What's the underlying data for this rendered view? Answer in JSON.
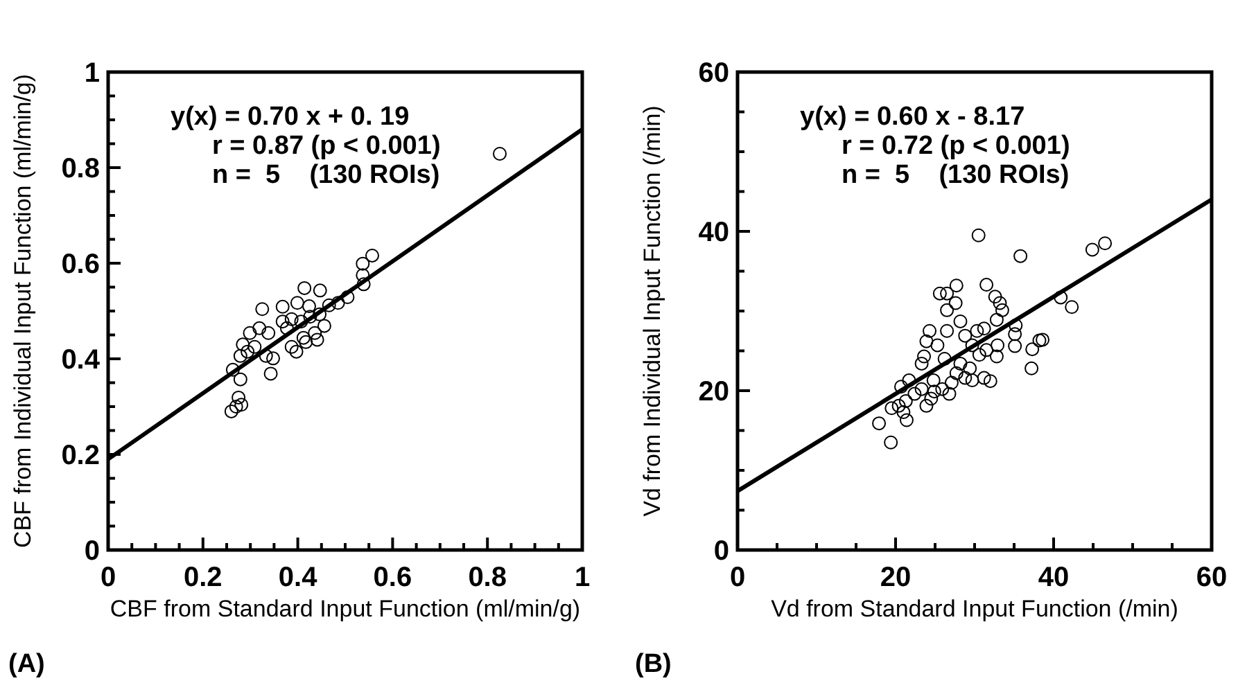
{
  "chart_data": [
    {
      "type": "scatter",
      "xlabel": "CBF from Standard Input Function (ml/min/g)",
      "ylabel": "CBF from Individual Input Function (ml/min/g)",
      "xlim": [
        0,
        1
      ],
      "ylim": [
        0,
        1
      ],
      "xticks": [
        0,
        {
          "value": 0.05,
          "label": null
        },
        {
          "value": 0.1,
          "label": null
        },
        {
          "value": 0.15,
          "label": null
        },
        0.2,
        {
          "value": 0.25,
          "label": null
        },
        {
          "value": 0.3,
          "label": null
        },
        {
          "value": 0.35,
          "label": null
        },
        0.4,
        {
          "value": 0.45,
          "label": null
        },
        {
          "value": 0.5,
          "label": null
        },
        {
          "value": 0.55,
          "label": null
        },
        0.6,
        {
          "value": 0.65,
          "label": null
        },
        {
          "value": 0.7,
          "label": null
        },
        {
          "value": 0.75,
          "label": null
        },
        0.8,
        {
          "value": 0.85,
          "label": null
        },
        {
          "value": 0.9,
          "label": null
        },
        {
          "value": 0.95,
          "label": null
        },
        1
      ],
      "yticks": [
        0,
        {
          "value": 0.05,
          "label": null
        },
        {
          "value": 0.1,
          "label": null
        },
        {
          "value": 0.15,
          "label": null
        },
        0.2,
        {
          "value": 0.25,
          "label": null
        },
        {
          "value": 0.3,
          "label": null
        },
        {
          "value": 0.35,
          "label": null
        },
        0.4,
        {
          "value": 0.45,
          "label": null
        },
        {
          "value": 0.5,
          "label": null
        },
        {
          "value": 0.55,
          "label": null
        },
        0.6,
        {
          "value": 0.65,
          "label": null
        },
        {
          "value": 0.7,
          "label": null
        },
        {
          "value": 0.75,
          "label": null
        },
        0.8,
        {
          "value": 0.85,
          "label": null
        },
        {
          "value": 0.9,
          "label": null
        },
        {
          "value": 0.95,
          "label": null
        },
        1
      ],
      "grid": false,
      "annotations": [
        "y(x) = 0.70 x + 0. 19",
        "r = 0.87 (p < 0.001)",
        "n =  5    (130 ROIs)",
        "(A)"
      ],
      "series": [
        {
          "marker": "circle",
          "color": "#000000",
          "x": [
            0.826,
            0.557,
            0.537,
            0.537,
            0.539,
            0.414,
            0.447,
            0.325,
            0.368,
            0.399,
            0.424,
            0.343,
            0.26,
            0.27,
            0.281,
            0.275,
            0.263,
            0.279,
            0.485,
            0.505,
            0.466,
            0.299,
            0.284,
            0.279,
            0.319,
            0.338,
            0.348,
            0.333,
            0.309,
            0.294,
            0.387,
            0.397,
            0.412,
            0.436,
            0.456,
            0.377,
            0.387,
            0.407,
            0.426,
            0.446,
            0.368,
            0.417,
            0.441
          ],
          "values": [
            0.829,
            0.616,
            0.599,
            0.575,
            0.556,
            0.548,
            0.543,
            0.504,
            0.509,
            0.517,
            0.51,
            0.369,
            0.29,
            0.3,
            0.304,
            0.319,
            0.377,
            0.357,
            0.517,
            0.529,
            0.512,
            0.454,
            0.43,
            0.406,
            0.464,
            0.454,
            0.401,
            0.406,
            0.425,
            0.415,
            0.425,
            0.415,
            0.444,
            0.454,
            0.469,
            0.464,
            0.483,
            0.478,
            0.488,
            0.493,
            0.478,
            0.435,
            0.44
          ]
        },
        {
          "type": "line",
          "color": "#000000",
          "x": [
            0,
            1
          ],
          "values": [
            0.19,
            0.88
          ]
        }
      ]
    },
    {
      "type": "scatter",
      "xlabel": "Vd from Standard Input Function (/min)",
      "ylabel": "Vd from Individual Input Function (/min)",
      "xlim": [
        0,
        60
      ],
      "ylim": [
        0,
        60
      ],
      "xticks": [
        0,
        {
          "value": 5,
          "label": null
        },
        {
          "value": 10,
          "label": null
        },
        {
          "value": 15,
          "label": null
        },
        20,
        {
          "value": 25,
          "label": null
        },
        {
          "value": 30,
          "label": null
        },
        {
          "value": 35,
          "label": null
        },
        40,
        {
          "value": 45,
          "label": null
        },
        {
          "value": 50,
          "label": null
        },
        {
          "value": 55,
          "label": null
        },
        60
      ],
      "yticks": [
        0,
        {
          "value": 5,
          "label": null
        },
        {
          "value": 10,
          "label": null
        },
        {
          "value": 15,
          "label": null
        },
        20,
        {
          "value": 25,
          "label": null
        },
        {
          "value": 30,
          "label": null
        },
        {
          "value": 35,
          "label": null
        },
        40,
        {
          "value": 45,
          "label": null
        },
        {
          "value": 50,
          "label": null
        },
        {
          "value": 55,
          "label": null
        },
        60
      ],
      "grid": false,
      "annotations": [
        "y(x) = 0.60 x - 8.17",
        "r = 0.72 (p < 0.001)",
        "n =  5    (130 ROIs)",
        "(B)"
      ],
      "series": [
        {
          "marker": "circle",
          "color": "#000000",
          "x": [
            30.5,
            35.8,
            44.9,
            46.5,
            40.9,
            42.3,
            31.5,
            27.7,
            25.6,
            26.5,
            27.6,
            26.5,
            32.6,
            33.2,
            33.5,
            32.8,
            35.2,
            35.1,
            35.1,
            37.3,
            38.2,
            38.6,
            37.2,
            28.2,
            24.3,
            26.5,
            23.9,
            25.3,
            23.6,
            23.3,
            26.2,
            28.8,
            30.3,
            31.2,
            29.7,
            30.6,
            31.5,
            32.9,
            32.8,
            28.2,
            29.4,
            27.7,
            28.8,
            29.7,
            27.1,
            26.8,
            25.9,
            24.8,
            31.2,
            32.0,
            24.9,
            21.7,
            20.7,
            22.4,
            23.3,
            23.9,
            24.5,
            19.5,
            20.4,
            21.0,
            21.4,
            17.9,
            19.4,
            21.3
          ],
          "values": [
            39.5,
            36.9,
            37.7,
            38.5,
            31.7,
            30.5,
            33.3,
            33.2,
            32.2,
            32.2,
            31.0,
            30.1,
            31.8,
            31.0,
            30.1,
            28.9,
            28.2,
            27.1,
            25.6,
            25.2,
            26.3,
            26.4,
            22.8,
            28.7,
            27.5,
            27.5,
            26.2,
            25.7,
            24.3,
            23.4,
            24.0,
            26.9,
            27.5,
            27.8,
            25.7,
            24.5,
            25.1,
            25.7,
            24.3,
            23.4,
            22.8,
            22.2,
            21.6,
            21.3,
            21.0,
            19.6,
            20.2,
            21.3,
            21.6,
            21.2,
            19.9,
            21.3,
            20.5,
            19.6,
            20.2,
            18.1,
            19.0,
            17.8,
            18.1,
            17.3,
            16.3,
            15.9,
            13.5,
            18.7
          ]
        },
        {
          "type": "line",
          "color": "#000000",
          "x": [
            0,
            60
          ],
          "values": [
            7.4,
            44
          ]
        }
      ]
    }
  ]
}
